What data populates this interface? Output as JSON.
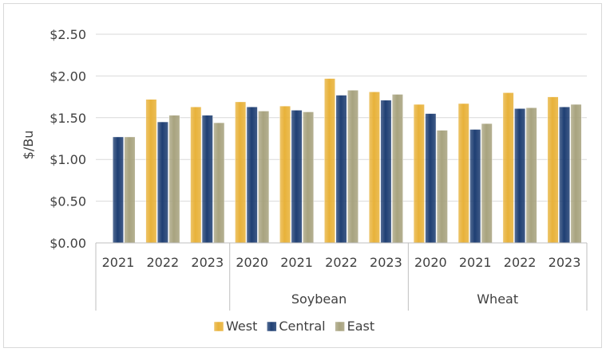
{
  "chart_data": {
    "type": "bar",
    "ylabel": "$/Bu",
    "ylim": [
      0,
      2.5
    ],
    "y_ticks": [
      "$0.00",
      "$0.50",
      "$1.00",
      "$1.50",
      "$2.00",
      "$2.50"
    ],
    "y_tick_values": [
      0,
      0.5,
      1.0,
      1.5,
      2.0,
      2.5
    ],
    "grid": true,
    "legend_position": "bottom",
    "groups": [
      {
        "name": "",
        "categories": [
          "2021",
          "2022",
          "2023"
        ]
      },
      {
        "name": "Soybean",
        "categories": [
          "2020",
          "2021",
          "2022",
          "2023"
        ]
      },
      {
        "name": "Wheat",
        "categories": [
          "2020",
          "2021",
          "2022",
          "2023"
        ]
      }
    ],
    "series": [
      {
        "name": "West",
        "color": "#e8b23a",
        "values": [
          null,
          1.72,
          1.63,
          1.69,
          1.64,
          1.97,
          1.81,
          1.66,
          1.67,
          1.8,
          1.75
        ]
      },
      {
        "name": "Central",
        "color": "#1f3f73",
        "values": [
          1.27,
          1.45,
          1.53,
          1.63,
          1.59,
          1.77,
          1.71,
          1.55,
          1.36,
          1.61,
          1.63
        ]
      },
      {
        "name": "East",
        "color": "#a8a37f",
        "values": [
          1.27,
          1.53,
          1.44,
          1.58,
          1.57,
          1.83,
          1.78,
          1.35,
          1.43,
          1.62,
          1.66
        ]
      }
    ]
  }
}
